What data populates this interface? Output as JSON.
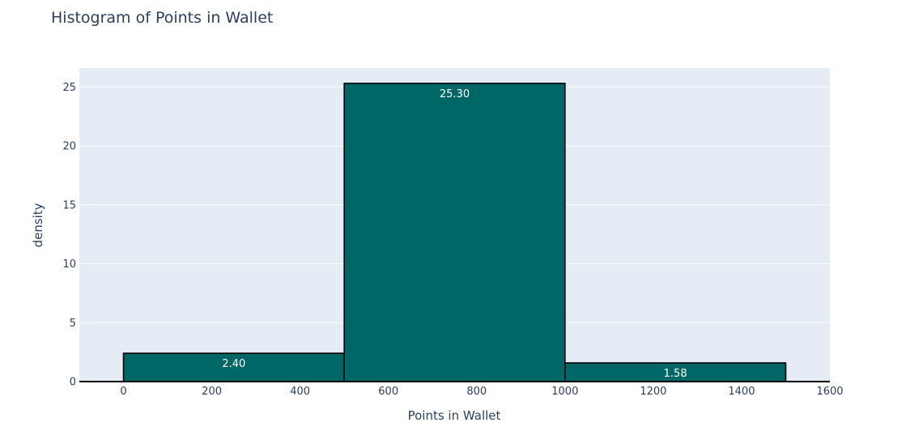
{
  "chart_data": {
    "type": "bar",
    "title": "Histogram of Points in Wallet",
    "xlabel": "Points in Wallet",
    "ylabel": "density",
    "xlim": [
      -100,
      1600
    ],
    "ylim": [
      0,
      26.6
    ],
    "x_ticks": [
      0,
      200,
      400,
      600,
      800,
      1000,
      1200,
      1400,
      1600
    ],
    "y_ticks": [
      0,
      5,
      10,
      15,
      20,
      25
    ],
    "grid": true,
    "bins": [
      {
        "start": 0,
        "end": 500,
        "value": 2.4,
        "label": "2.40"
      },
      {
        "start": 500,
        "end": 1000,
        "value": 25.3,
        "label": "25.30"
      },
      {
        "start": 1000,
        "end": 1500,
        "value": 1.58,
        "label": "1.58"
      }
    ],
    "colors": {
      "bar_fill": "#006666",
      "bar_outline": "#000000",
      "plot_background": "#e5ecf6",
      "grid": "#ffffff",
      "text": "#2a3f5f"
    }
  }
}
